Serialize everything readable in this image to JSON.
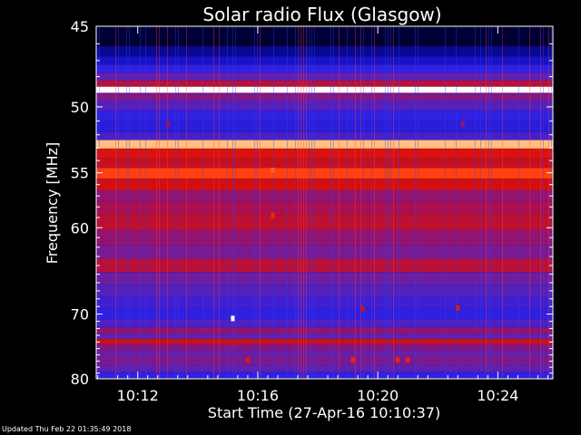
{
  "chart_data": {
    "type": "heatmap",
    "title": "Solar radio Flux (Glasgow)",
    "ylabel": "Frequency [MHz]",
    "xlabel": "Start Time (27-Apr-16 10:10:37)",
    "y_scale": "reciprocal",
    "ylim": [
      45,
      80
    ],
    "y_ticks": [
      45,
      50,
      55,
      60,
      70,
      80
    ],
    "y_tick_labels": [
      "45",
      "50",
      "55",
      "60",
      "70",
      "80"
    ],
    "xlim": [
      "10:10:37",
      "10:25:50"
    ],
    "x_ticks": [
      "10:12",
      "10:16",
      "10:20",
      "10:24"
    ],
    "x_tick_labels": [
      "10:12",
      "10:16",
      "10:20",
      "10:24"
    ],
    "colormap": [
      "#000008",
      "#000060",
      "#1010c0",
      "#3020e0",
      "#6020b0",
      "#a01060",
      "#d01010",
      "#ff2000",
      "#ff6020",
      "#ffc080",
      "#ffffff"
    ],
    "bands": [
      {
        "frequency_mhz": 45.8,
        "intensity": 0.05
      },
      {
        "frequency_mhz": 46.5,
        "intensity": 0.15
      },
      {
        "frequency_mhz": 47.0,
        "intensity": 0.22
      },
      {
        "frequency_mhz": 47.5,
        "intensity": 0.3
      },
      {
        "frequency_mhz": 48.0,
        "intensity": 0.4
      },
      {
        "frequency_mhz": 48.5,
        "intensity": 0.55
      },
      {
        "frequency_mhz": 48.8,
        "intensity": 1.0
      },
      {
        "frequency_mhz": 49.3,
        "intensity": 0.45
      },
      {
        "frequency_mhz": 49.9,
        "intensity": 0.38
      },
      {
        "frequency_mhz": 50.6,
        "intensity": 0.3
      },
      {
        "frequency_mhz": 51.5,
        "intensity": 0.28
      },
      {
        "frequency_mhz": 52.1,
        "intensity": 0.35
      },
      {
        "frequency_mhz": 52.7,
        "intensity": 0.9
      },
      {
        "frequency_mhz": 53.4,
        "intensity": 0.62
      },
      {
        "frequency_mhz": 54.2,
        "intensity": 0.58
      },
      {
        "frequency_mhz": 55.0,
        "intensity": 0.75
      },
      {
        "frequency_mhz": 56.0,
        "intensity": 0.6
      },
      {
        "frequency_mhz": 57.0,
        "intensity": 0.48
      },
      {
        "frequency_mhz": 58.0,
        "intensity": 0.52
      },
      {
        "frequency_mhz": 59.5,
        "intensity": 0.56
      },
      {
        "frequency_mhz": 61.0,
        "intensity": 0.48
      },
      {
        "frequency_mhz": 62.5,
        "intensity": 0.44
      },
      {
        "frequency_mhz": 64.0,
        "intensity": 0.55
      },
      {
        "frequency_mhz": 65.5,
        "intensity": 0.42
      },
      {
        "frequency_mhz": 67.0,
        "intensity": 0.38
      },
      {
        "frequency_mhz": 68.5,
        "intensity": 0.33
      },
      {
        "frequency_mhz": 70.0,
        "intensity": 0.3
      },
      {
        "frequency_mhz": 71.5,
        "intensity": 0.36
      },
      {
        "frequency_mhz": 72.3,
        "intensity": 0.48
      },
      {
        "frequency_mhz": 73.2,
        "intensity": 0.4
      },
      {
        "frequency_mhz": 73.9,
        "intensity": 0.6
      },
      {
        "frequency_mhz": 74.7,
        "intensity": 0.46
      },
      {
        "frequency_mhz": 75.8,
        "intensity": 0.42
      },
      {
        "frequency_mhz": 77.0,
        "intensity": 0.44
      },
      {
        "frequency_mhz": 78.3,
        "intensity": 0.4
      },
      {
        "frequency_mhz": 79.3,
        "intensity": 0.3
      }
    ],
    "bursts": [
      {
        "time": "10:15:10",
        "frequency_mhz": 70.6,
        "intensity": 1.0
      },
      {
        "time": "10:15:10",
        "frequency_mhz": 74.2,
        "intensity": 0.6
      },
      {
        "time": "10:16:30",
        "frequency_mhz": 54.8,
        "intensity": 0.8
      },
      {
        "time": "10:16:30",
        "frequency_mhz": 58.8,
        "intensity": 0.7
      },
      {
        "time": "10:13:00",
        "frequency_mhz": 51.2,
        "intensity": 0.5
      },
      {
        "time": "10:22:50",
        "frequency_mhz": 51.2,
        "intensity": 0.5
      },
      {
        "time": "10:19:10",
        "frequency_mhz": 76.8,
        "intensity": 0.7
      },
      {
        "time": "10:20:40",
        "frequency_mhz": 76.8,
        "intensity": 0.7
      },
      {
        "time": "10:21:00",
        "frequency_mhz": 76.8,
        "intensity": 0.7
      },
      {
        "time": "10:15:40",
        "frequency_mhz": 76.8,
        "intensity": 0.65
      },
      {
        "time": "10:22:40",
        "frequency_mhz": 69.2,
        "intensity": 0.65
      },
      {
        "time": "10:19:30",
        "frequency_mhz": 69.3,
        "intensity": 0.6
      }
    ]
  },
  "footer": {
    "updated_text": "Updated Thu Feb 22 01:35:49 2018"
  }
}
